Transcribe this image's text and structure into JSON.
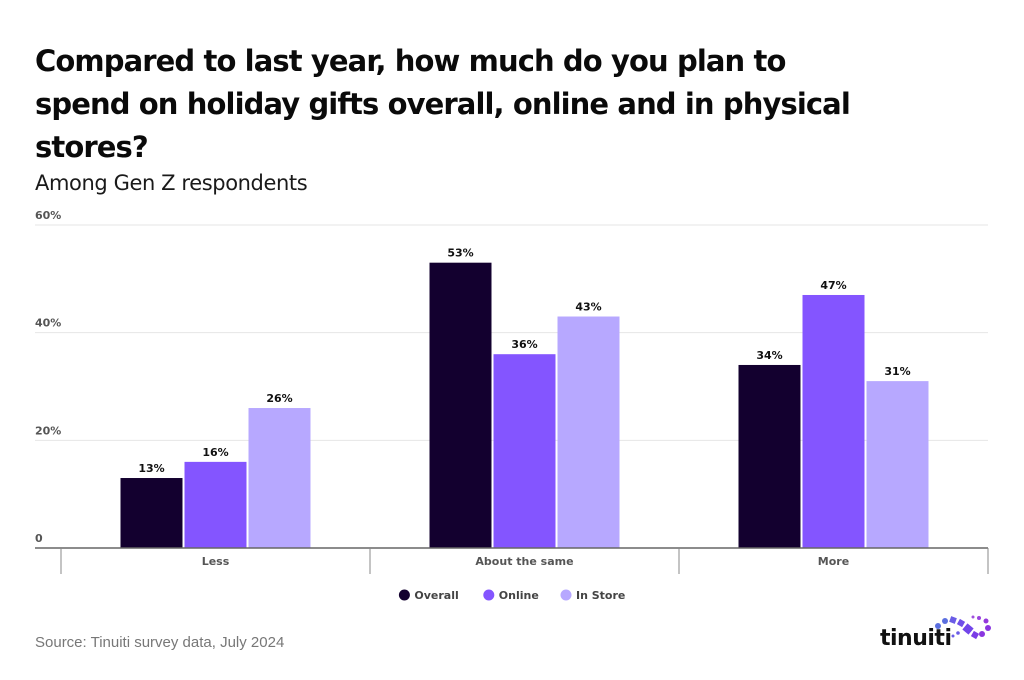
{
  "header": {
    "title": "Compared to last year, how much do you plan to spend on holiday gifts overall, online and in physical stores?",
    "subtitle": "Among Gen Z respondents"
  },
  "footer": {
    "source": "Source: Tinuiti survey data, July 2024",
    "logo_text": "tinuiti"
  },
  "chart_data": {
    "type": "bar",
    "title": "Compared to last year, how much do you plan to spend on holiday gifts overall, online and in physical stores?",
    "subtitle": "Among Gen Z respondents",
    "xlabel": "",
    "ylabel": "",
    "categories": [
      "Less",
      "About the same",
      "More"
    ],
    "series": [
      {
        "name": "Overall",
        "color": "#13002f",
        "values": [
          13,
          53,
          34
        ]
      },
      {
        "name": "Online",
        "color": "#8455ff",
        "values": [
          16,
          36,
          47
        ]
      },
      {
        "name": "In Store",
        "color": "#b7a8ff",
        "values": [
          26,
          43,
          31
        ]
      }
    ],
    "value_suffix": "%",
    "ylim": [
      0,
      60
    ],
    "yticks": [
      0,
      20,
      40,
      60
    ],
    "ytick_labels": [
      "0",
      "20%",
      "40%",
      "60%"
    ],
    "grid": true,
    "legend_position": "bottom-center",
    "data_labels": true
  }
}
